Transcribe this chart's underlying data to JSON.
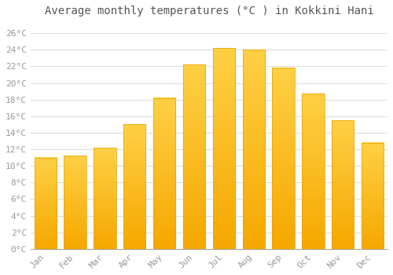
{
  "title": "Average monthly temperatures (°C ) in Kokkini Hani",
  "months": [
    "Jan",
    "Feb",
    "Mar",
    "Apr",
    "May",
    "Jun",
    "Jul",
    "Aug",
    "Sep",
    "Oct",
    "Nov",
    "Dec"
  ],
  "values": [
    11.0,
    11.2,
    12.2,
    15.0,
    18.2,
    22.2,
    24.2,
    24.0,
    21.8,
    18.7,
    15.5,
    12.8
  ],
  "bar_color_top": "#FFD045",
  "bar_color_bottom": "#F5A800",
  "bar_edge_color": "#E8A000",
  "background_color": "#FFFFFF",
  "grid_color": "#DDDDDD",
  "ytick_labels": [
    "0°C",
    "2°C",
    "4°C",
    "6°C",
    "8°C",
    "10°C",
    "12°C",
    "14°C",
    "16°C",
    "18°C",
    "20°C",
    "22°C",
    "24°C",
    "26°C"
  ],
  "ytick_values": [
    0,
    2,
    4,
    6,
    8,
    10,
    12,
    14,
    16,
    18,
    20,
    22,
    24,
    26
  ],
  "ylim": [
    0,
    27.5
  ],
  "title_fontsize": 10,
  "tick_fontsize": 8,
  "font_family": "monospace",
  "tick_color": "#999999",
  "title_color": "#555555"
}
